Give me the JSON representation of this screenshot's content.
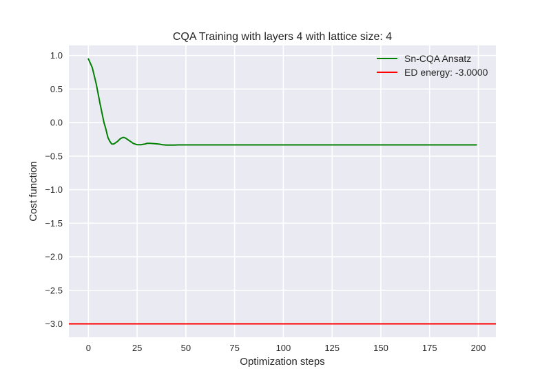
{
  "chart_data": {
    "type": "line",
    "title": "CQA Training with layers 4 with lattice size: 4",
    "xlabel": "Optimization steps",
    "ylabel": "Cost function",
    "xlim": [
      -10,
      209
    ],
    "ylim": [
      -3.2,
      1.15
    ],
    "x_ticks": [
      0,
      25,
      50,
      75,
      100,
      125,
      150,
      175,
      200
    ],
    "x_tick_labels": [
      "0",
      "25",
      "50",
      "75",
      "100",
      "125",
      "150",
      "175",
      "200"
    ],
    "y_ticks": [
      1.0,
      0.5,
      0.0,
      -0.5,
      -1.0,
      -1.5,
      -2.0,
      -2.5,
      -3.0
    ],
    "y_tick_labels": [
      "1.0",
      "0.5",
      "0.0",
      "−0.5",
      "−1.0",
      "−1.5",
      "−2.0",
      "−2.5",
      "−3.0"
    ],
    "grid": true,
    "legend_position": "top-right",
    "series": [
      {
        "name": "Sn-CQA Ansatz",
        "color": "#008000",
        "x": [
          0,
          2,
          4,
          6,
          8,
          9,
          10,
          11,
          12,
          13,
          14,
          15,
          16,
          17,
          18,
          19,
          20,
          21,
          22,
          23,
          24,
          25,
          26,
          27,
          28,
          29,
          30,
          32,
          34,
          36,
          38,
          40,
          42,
          44,
          46,
          48,
          50,
          55,
          60,
          70,
          80,
          90,
          100,
          120,
          140,
          160,
          180,
          199
        ],
        "y": [
          0.95,
          0.82,
          0.58,
          0.28,
          0.0,
          -0.1,
          -0.22,
          -0.28,
          -0.32,
          -0.32,
          -0.3,
          -0.28,
          -0.25,
          -0.23,
          -0.22,
          -0.23,
          -0.25,
          -0.27,
          -0.29,
          -0.31,
          -0.32,
          -0.33,
          -0.33,
          -0.33,
          -0.325,
          -0.32,
          -0.31,
          -0.31,
          -0.315,
          -0.32,
          -0.33,
          -0.335,
          -0.335,
          -0.335,
          -0.333,
          -0.332,
          -0.333,
          -0.333,
          -0.333,
          -0.333,
          -0.333,
          -0.333,
          -0.333,
          -0.333,
          -0.333,
          -0.333,
          -0.333,
          -0.333
        ]
      },
      {
        "name": "ED energy: -3.0000",
        "color": "#ff0000",
        "type": "hline",
        "y": -3.0
      }
    ]
  }
}
